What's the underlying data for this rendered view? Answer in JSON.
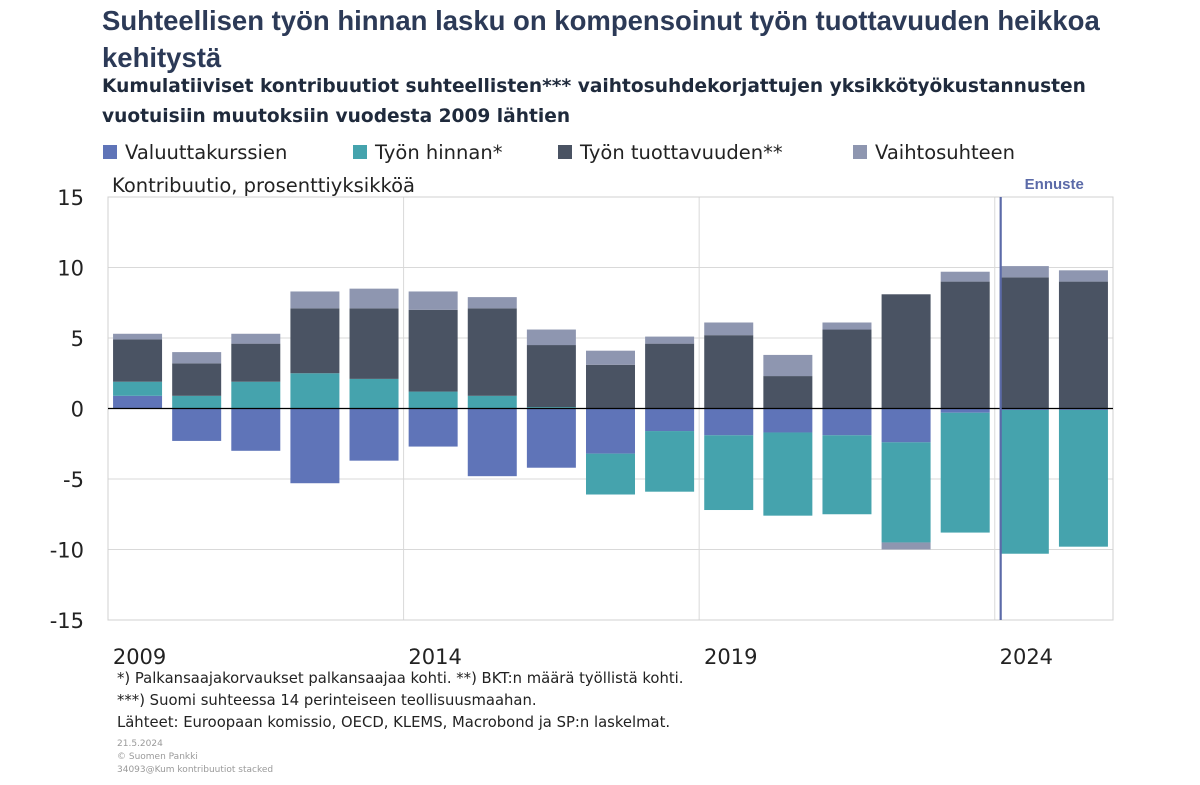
{
  "title": "Suhteellisen työn hinnan lasku on kompensoinut työn tuottavuuden heikkoa kehitystä",
  "subtitle": "Kumulatiiviset kontribuutiot suhteellisten*** vaihtosuhdekorjattujen yksikkötyökustannusten vuotuisiin muutoksiin vuodesta 2009 lähtien",
  "legend": [
    {
      "label": "Valuuttakurssien",
      "color": "#5f74b8"
    },
    {
      "label": "Työn hinnan*",
      "color": "#45a3ad"
    },
    {
      "label": "Työn tuottavuuden**",
      "color": "#4a5363"
    },
    {
      "label": "Vaihtosuhteen",
      "color": "#8e96b0"
    }
  ],
  "notes": [
    "*) Palkansaajakorvaukset palkansaajaa kohti. **) BKT:n määrä työllistä kohti.",
    "***) Suomi suhteessa 14 perinteiseen teollisuusmaahan.",
    "Lähteet: Euroopaan komissio, OECD, KLEMS, Macrobond ja SP:n laskelmat."
  ],
  "meta": [
    "21.5.2024",
    "© Suomen Pankki",
    "34093@Kum kontribuutiot stacked"
  ],
  "chart_data": {
    "type": "bar",
    "stacked": true,
    "ylabel": "Kontribuutio, prosenttiyksikköä",
    "ylim": [
      -15,
      15
    ],
    "yticks": [
      15,
      10,
      5,
      0,
      -5,
      -10,
      -15
    ],
    "x": [
      2009,
      2010,
      2011,
      2012,
      2013,
      2014,
      2015,
      2016,
      2017,
      2018,
      2019,
      2020,
      2021,
      2022,
      2023,
      2024,
      2025
    ],
    "xtick_labels": [
      "2009",
      "2014",
      "2019",
      "2024"
    ],
    "forecast_label": "Ennuste",
    "forecast_from": 2023.6,
    "grid": true,
    "series": [
      {
        "name": "Valuuttakurssien",
        "color": "#5f74b8",
        "values": [
          0.9,
          -2.3,
          -3.0,
          -5.3,
          -3.7,
          -2.7,
          -4.8,
          -4.2,
          -3.2,
          -1.6,
          -1.9,
          -1.7,
          -1.9,
          -2.4,
          -0.3,
          -0.1,
          -0.1
        ]
      },
      {
        "name": "Työn hinnan*",
        "color": "#45a3ad",
        "values": [
          1.0,
          0.9,
          1.9,
          2.5,
          2.1,
          1.2,
          0.9,
          0.1,
          -2.9,
          -4.3,
          -5.3,
          -5.9,
          -5.6,
          -7.1,
          -8.5,
          -10.2,
          -9.7
        ]
      },
      {
        "name": "Työn tuottavuuden**",
        "color": "#4a5363",
        "values": [
          3.0,
          2.3,
          2.7,
          4.6,
          5.0,
          5.8,
          6.2,
          4.4,
          3.1,
          4.6,
          5.2,
          2.3,
          5.6,
          8.1,
          9.0,
          9.3,
          9.0
        ]
      },
      {
        "name": "Vaihtosuhteen",
        "color": "#8e96b0",
        "values": [
          0.4,
          0.8,
          0.7,
          1.2,
          1.4,
          1.3,
          0.8,
          1.1,
          1.0,
          0.5,
          0.9,
          1.5,
          0.5,
          -0.5,
          0.7,
          0.8,
          0.8
        ]
      }
    ]
  }
}
